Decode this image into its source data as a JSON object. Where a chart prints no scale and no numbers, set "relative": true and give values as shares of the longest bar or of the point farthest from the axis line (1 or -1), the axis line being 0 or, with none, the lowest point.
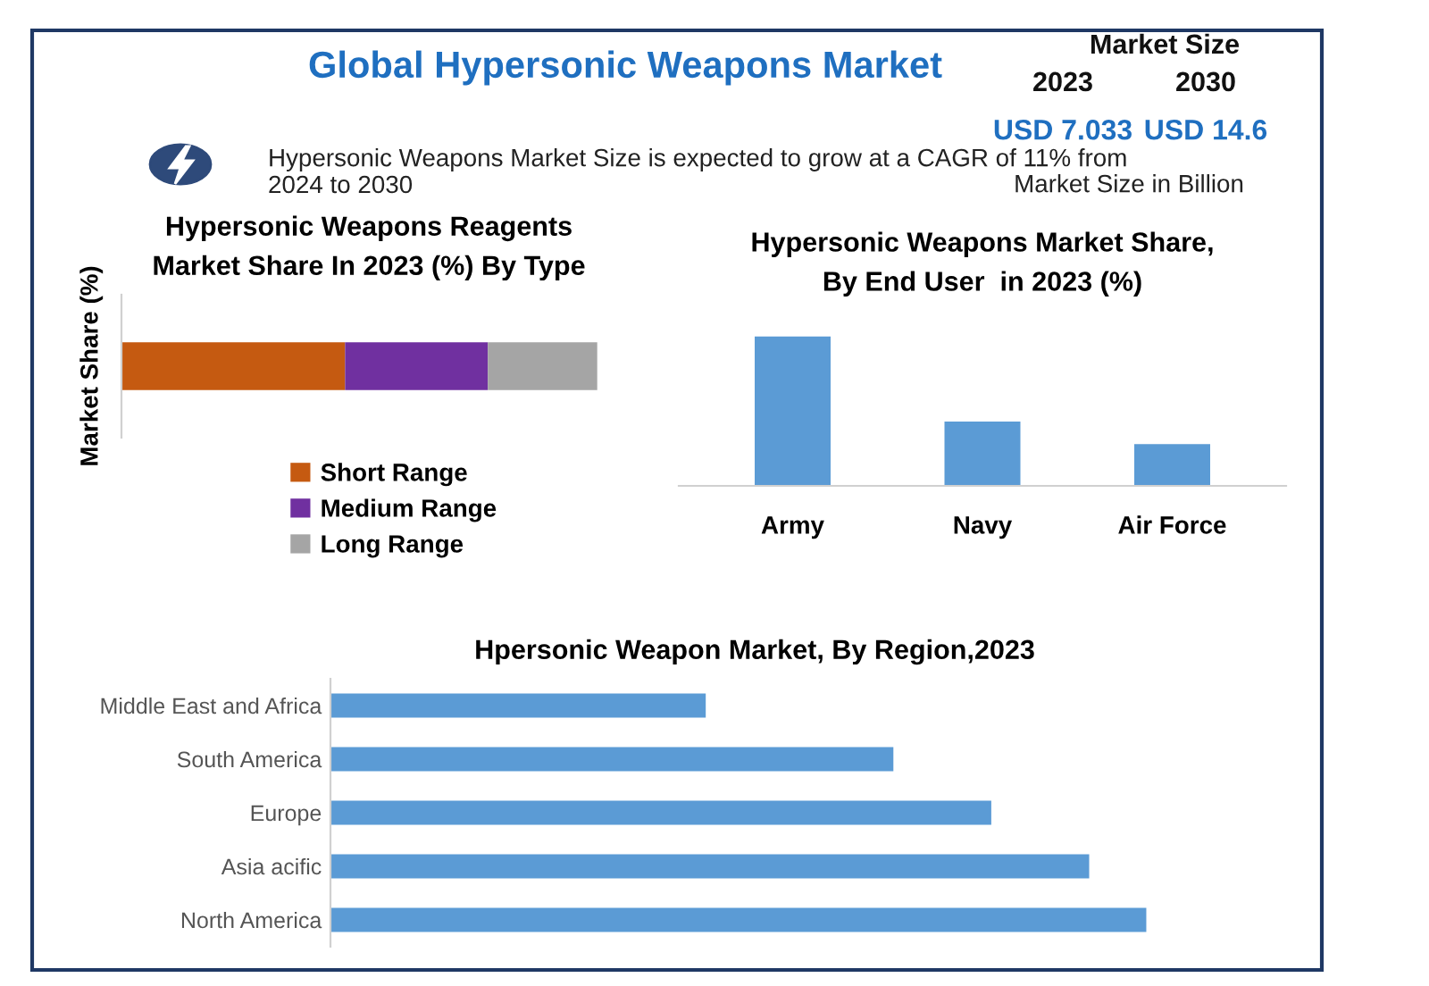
{
  "chart_data": [
    {
      "type": "other",
      "title": "Global Hypersonic Weapons Market",
      "annotations": [
        "Hypersonic Weapons Market Size is expected to grow at a CAGR of 11% from 2024 to 2030",
        "Market Size",
        "2023",
        "2030",
        "USD 7.033",
        "USD 14.6",
        "Market Size in Billion"
      ]
    },
    {
      "type": "bar",
      "orientation": "horizontal",
      "stacked": true,
      "relative": true,
      "title": "Hypersonic Weapons Reagents\nMarket Share In 2023 (%) By Type",
      "ylabel": "Market Share (%)",
      "categories": [
        null
      ],
      "legend": "bottom",
      "series": [
        {
          "name": "Short Range",
          "color": "#c55a11",
          "values": [
            0.47
          ]
        },
        {
          "name": "Medium Range",
          "color": "#7030a0",
          "values": [
            0.3
          ]
        },
        {
          "name": "Long Range",
          "color": "#a5a5a5",
          "values": [
            0.23
          ]
        }
      ]
    },
    {
      "type": "bar",
      "relative": true,
      "title": "Hypersonic Weapons Market Share,\nBy End User  in 2023 (%)",
      "categories": [
        "Army",
        "Navy",
        "Air Force"
      ],
      "series": [
        {
          "color": "#5b9bd5",
          "values": [
            1,
            0.43,
            0.28
          ]
        }
      ]
    },
    {
      "type": "bar",
      "orientation": "horizontal",
      "relative": true,
      "title": "Hpersonic Weapon Market, By Region,2023",
      "categories": [
        "Middle East and Africa",
        "South America",
        "Europe",
        "Asia acific",
        "North America"
      ],
      "series": [
        {
          "color": "#5b9bd5",
          "values": [
            0.46,
            0.69,
            0.81,
            0.93,
            1
          ]
        }
      ]
    }
  ]
}
